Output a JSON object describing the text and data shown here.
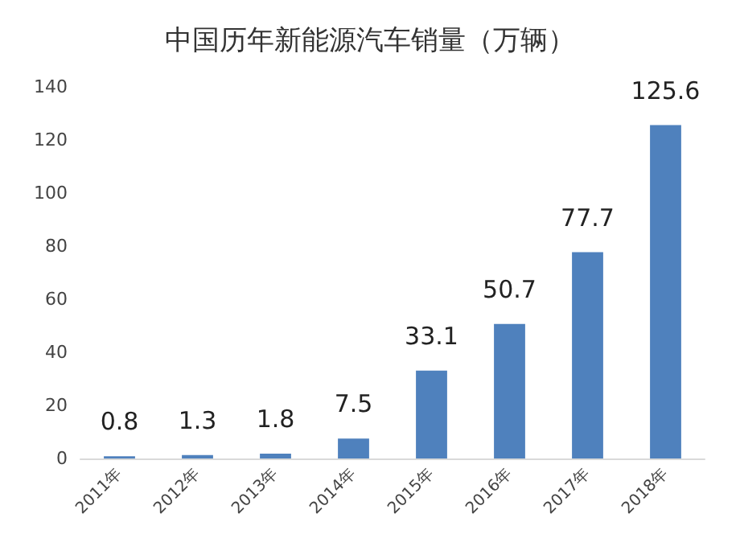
{
  "chart_data": {
    "type": "bar",
    "title": "中国历年新能源汽车销量（万辆）",
    "categories": [
      "2011年",
      "2012年",
      "2013年",
      "2014年",
      "2015年",
      "2016年",
      "2017年",
      "2018年"
    ],
    "values": [
      0.8,
      1.3,
      1.8,
      7.5,
      33.1,
      50.7,
      77.7,
      125.6
    ],
    "color": "#4f81bd",
    "ylim": [
      0,
      140
    ],
    "yticks": [
      0,
      20,
      40,
      60,
      80,
      100,
      120,
      140
    ],
    "data_labels": true
  }
}
